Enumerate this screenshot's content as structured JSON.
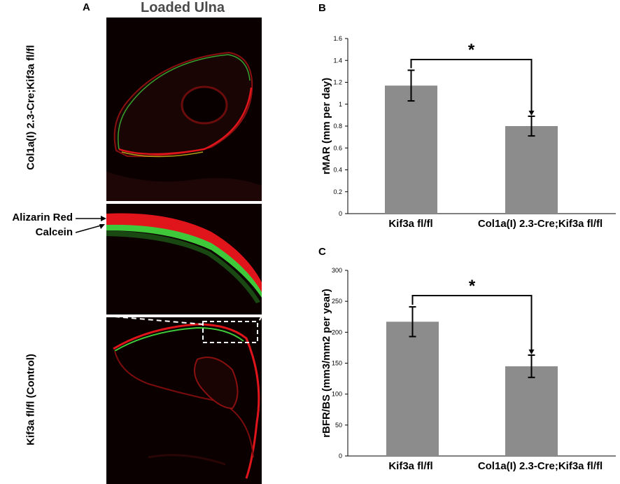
{
  "panelA": {
    "letter": "A",
    "title": "Loaded Ulna",
    "top_label": "Col1a(I) 2.3-Cre;Kif3a fl/fl",
    "bottom_label": "Kif3a fl/fl (Control)",
    "stain_labels": [
      "Alizarin Red",
      "Calcein"
    ],
    "colors": {
      "alizarin": "#e0151b",
      "calcein": "#3fc83a",
      "background": "#000000"
    }
  },
  "panelB": {
    "letter": "B"
  },
  "panelC": {
    "letter": "C"
  },
  "chart_data": [
    {
      "type": "bar",
      "categories": [
        "Kif3a fl/fl",
        "Col1a(I) 2.3-Cre;Kif3a fl/fl"
      ],
      "values": [
        1.17,
        0.8
      ],
      "errors": [
        0.14,
        0.09
      ],
      "ylabel": "rMAR (mm per day)",
      "ylim": [
        0,
        1.6
      ],
      "yticks": [
        "0",
        "0.2",
        "0.4",
        "0.6",
        "0.8",
        "1",
        "1.2",
        "1.4",
        "1.6"
      ],
      "significance": "*",
      "bar_color": "#8c8c8c",
      "grid": false
    },
    {
      "type": "bar",
      "categories": [
        "Kif3a fl/fl",
        "Col1a(I) 2.3-Cre;Kif3a fl/fl"
      ],
      "values": [
        217,
        145
      ],
      "errors": [
        24,
        18
      ],
      "ylabel": "rBFR/BS (mm3/mm2 per year)",
      "ylim": [
        0,
        300
      ],
      "yticks": [
        "0",
        "50",
        "100",
        "150",
        "200",
        "250",
        "300"
      ],
      "significance": "*",
      "bar_color": "#8c8c8c",
      "grid": false
    }
  ]
}
